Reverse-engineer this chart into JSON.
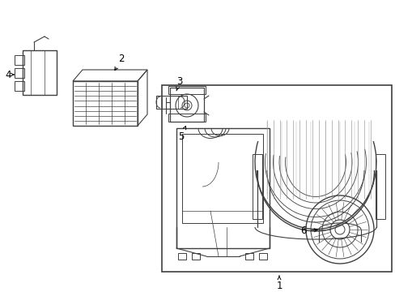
{
  "bg_color": "#ffffff",
  "line_color": "#404040",
  "label_color": "#000000",
  "fig_width": 4.89,
  "fig_height": 3.6,
  "dpi": 100,
  "font_size": 8.5
}
